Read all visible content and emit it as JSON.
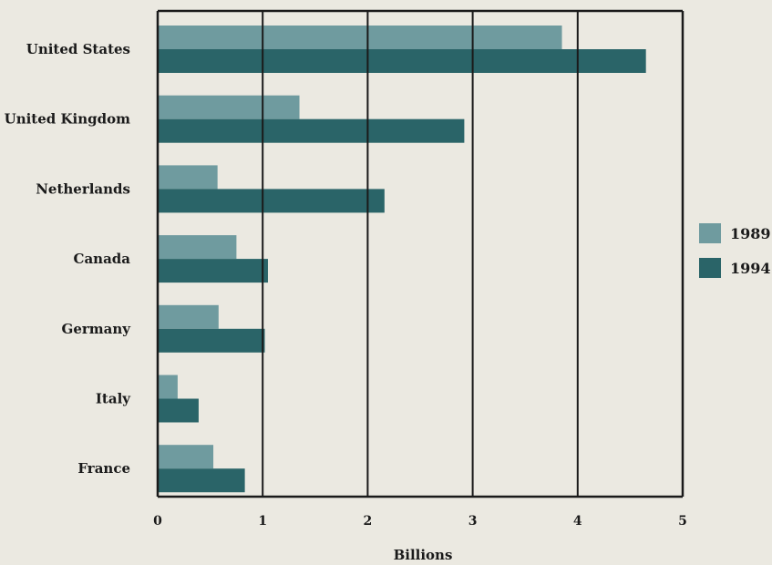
{
  "chart_data": {
    "type": "bar",
    "orientation": "horizontal",
    "categories": [
      "United States",
      "United Kingdom",
      "Netherlands",
      "Canada",
      "Germany",
      "Italy",
      "France"
    ],
    "series": [
      {
        "name": "1989",
        "color": "#6f9b9f",
        "values": [
          3.85,
          1.35,
          0.57,
          0.75,
          0.58,
          0.19,
          0.53
        ]
      },
      {
        "name": "1994",
        "color": "#2a6468",
        "values": [
          4.65,
          2.92,
          2.16,
          1.05,
          1.02,
          0.39,
          0.83
        ]
      }
    ],
    "xlabel": "Billions",
    "xlim": [
      0,
      5
    ],
    "xticks": [
      "0",
      "1",
      "2",
      "3",
      "4",
      "5"
    ],
    "grid": true,
    "legend_position": "right"
  }
}
